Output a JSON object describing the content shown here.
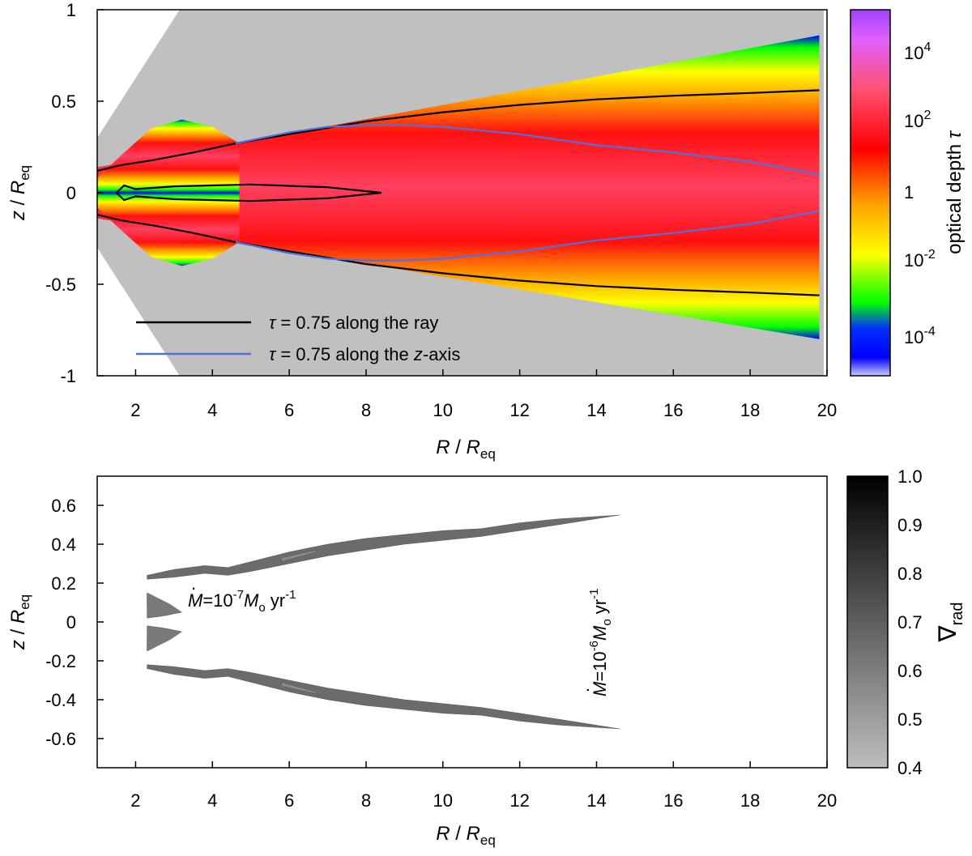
{
  "chart_data": [
    {
      "type": "heatmap",
      "x_axis": {
        "range": [
          1,
          20
        ],
        "ticks": [
          "2",
          "4",
          "6",
          "8",
          "10",
          "12",
          "14",
          "16",
          "18",
          "20"
        ]
      },
      "y_axis": {
        "range": [
          -1,
          1
        ],
        "ticks": [
          "1",
          "0.5",
          "0",
          "-0.5",
          "-1"
        ]
      },
      "colorbar": {
        "label_text": "optical depth",
        "label_symbol": "τ",
        "scale": "log",
        "range": [
          1e-05,
          100000
        ],
        "ticks": [
          "10^4",
          "10^2",
          "1",
          "10^-2",
          "10^-4"
        ],
        "colors": [
          "#c8c8ff",
          "#0000ff",
          "#00ff00",
          "#ffff00",
          "#ffa000",
          "#ff0000",
          "#ff6080",
          "#c000ff",
          "#a040ff"
        ]
      },
      "background_color": "#c0c0c0",
      "legend": {
        "position": "bottom-left",
        "entries": [
          {
            "symbol": "τ",
            "text": " = 0.75 along the ray",
            "color": "#000000"
          },
          {
            "symbol": "τ",
            "text": " = 0.75 along the ",
            "italic_tail": "z",
            "tail": "-axis",
            "color": "#5070e0"
          }
        ]
      },
      "series": [
        {
          "color": "#000000",
          "upper": [
            [
              1,
              0.12
            ],
            [
              1.6,
              0.15
            ],
            [
              2.5,
              0.18
            ],
            [
              3.5,
              0.22
            ],
            [
              4.6,
              0.27
            ],
            [
              6,
              0.32
            ],
            [
              8,
              0.39
            ],
            [
              10,
              0.44
            ],
            [
              12,
              0.48
            ],
            [
              14,
              0.51
            ],
            [
              16,
              0.53
            ],
            [
              18,
              0.545
            ],
            [
              19.8,
              0.56
            ]
          ]
        },
        {
          "color": "#5070e0",
          "upper": [
            [
              4.6,
              0.27
            ],
            [
              6,
              0.33
            ],
            [
              7,
              0.36
            ],
            [
              8,
              0.37
            ],
            [
              9,
              0.37
            ],
            [
              10,
              0.36
            ],
            [
              11,
              0.34
            ],
            [
              12,
              0.32
            ],
            [
              13,
              0.29
            ],
            [
              14,
              0.26
            ],
            [
              15,
              0.24
            ],
            [
              16,
              0.22
            ],
            [
              18,
              0.17
            ],
            [
              19.8,
              0.1
            ]
          ]
        },
        {
          "color": "#000000",
          "inner_loop": [
            [
              1.5,
              0
            ],
            [
              1.7,
              0.04
            ],
            [
              2,
              0.02
            ],
            [
              3,
              0.035
            ],
            [
              5,
              0.045
            ],
            [
              7,
              0.03
            ],
            [
              8.4,
              0
            ],
            [
              7,
              -0.03
            ],
            [
              5,
              -0.045
            ],
            [
              3,
              -0.035
            ],
            [
              2,
              -0.02
            ],
            [
              1.7,
              -0.04
            ],
            [
              1.5,
              0
            ]
          ]
        }
      ]
    },
    {
      "type": "heatmap",
      "x_axis": {
        "range": [
          1,
          20
        ],
        "ticks": [
          "2",
          "4",
          "6",
          "8",
          "10",
          "12",
          "14",
          "16",
          "18",
          "20"
        ]
      },
      "y_axis": {
        "range": [
          -0.75,
          0.75
        ],
        "ticks": [
          "0.6",
          "0.4",
          "0.2",
          "0",
          "-0.2",
          "-0.4",
          "-0.6"
        ]
      },
      "colorbar": {
        "label": "∇",
        "label_sub": "rad",
        "range": [
          0.4,
          1.0
        ],
        "ticks": [
          "1.0",
          "0.9",
          "0.8",
          "0.7",
          "0.6",
          "0.5",
          "0.4"
        ]
      },
      "annotations": {
        "low": {
          "prefix": "=10",
          "exp": "-7",
          "unit": "yr",
          "unit_exp": "-1"
        },
        "high": {
          "prefix": "=10",
          "exp": "-6",
          "unit": "yr",
          "unit_exp": "-1"
        }
      },
      "regions": [
        {
          "name": "upper-band",
          "shade": 0.55,
          "top": [
            [
              2.3,
              0.24
            ],
            [
              3,
              0.27
            ],
            [
              3.8,
              0.29
            ],
            [
              4.4,
              0.28
            ],
            [
              5,
              0.31
            ],
            [
              6,
              0.36
            ],
            [
              7,
              0.4
            ],
            [
              8,
              0.43
            ],
            [
              9,
              0.45
            ],
            [
              10,
              0.47
            ],
            [
              11,
              0.48
            ],
            [
              12,
              0.51
            ],
            [
              13,
              0.53
            ],
            [
              14.6,
              0.55
            ]
          ],
          "bottom": [
            [
              14.6,
              0.55
            ],
            [
              13,
              0.5
            ],
            [
              12,
              0.47
            ],
            [
              11,
              0.44
            ],
            [
              10,
              0.42
            ],
            [
              9,
              0.4
            ],
            [
              8,
              0.37
            ],
            [
              7,
              0.34
            ],
            [
              6,
              0.3
            ],
            [
              5,
              0.26
            ],
            [
              4.4,
              0.24
            ],
            [
              3.8,
              0.25
            ],
            [
              3,
              0.23
            ],
            [
              2.3,
              0.22
            ]
          ]
        },
        {
          "name": "upper-flap",
          "shade": 0.35,
          "top": [
            [
              5.8,
              0.33
            ],
            [
              6.7,
              0.37
            ]
          ],
          "bottom": [
            [
              6.7,
              0.36
            ],
            [
              5.8,
              0.31
            ]
          ]
        },
        {
          "name": "inner-upper",
          "shade": 0.45,
          "top": [
            [
              2.3,
              0.14
            ],
            [
              2.7,
              0.09
            ],
            [
              3.1,
              0.06
            ],
            [
              3.2,
              0.05
            ]
          ],
          "bottom": [
            [
              3.2,
              0.05
            ],
            [
              2.8,
              0.04
            ],
            [
              2.5,
              0.06
            ],
            [
              2.3,
              0.08
            ]
          ]
        },
        {
          "name": "inner-lower",
          "shade": 0.45,
          "top": [
            [
              2.3,
              -0.02
            ],
            [
              2.7,
              -0.03
            ],
            [
              3.2,
              -0.05
            ]
          ],
          "bottom": [
            [
              3.2,
              -0.05
            ],
            [
              2.9,
              -0.09
            ],
            [
              2.6,
              -0.12
            ],
            [
              2.3,
              -0.15
            ]
          ]
        }
      ]
    }
  ]
}
